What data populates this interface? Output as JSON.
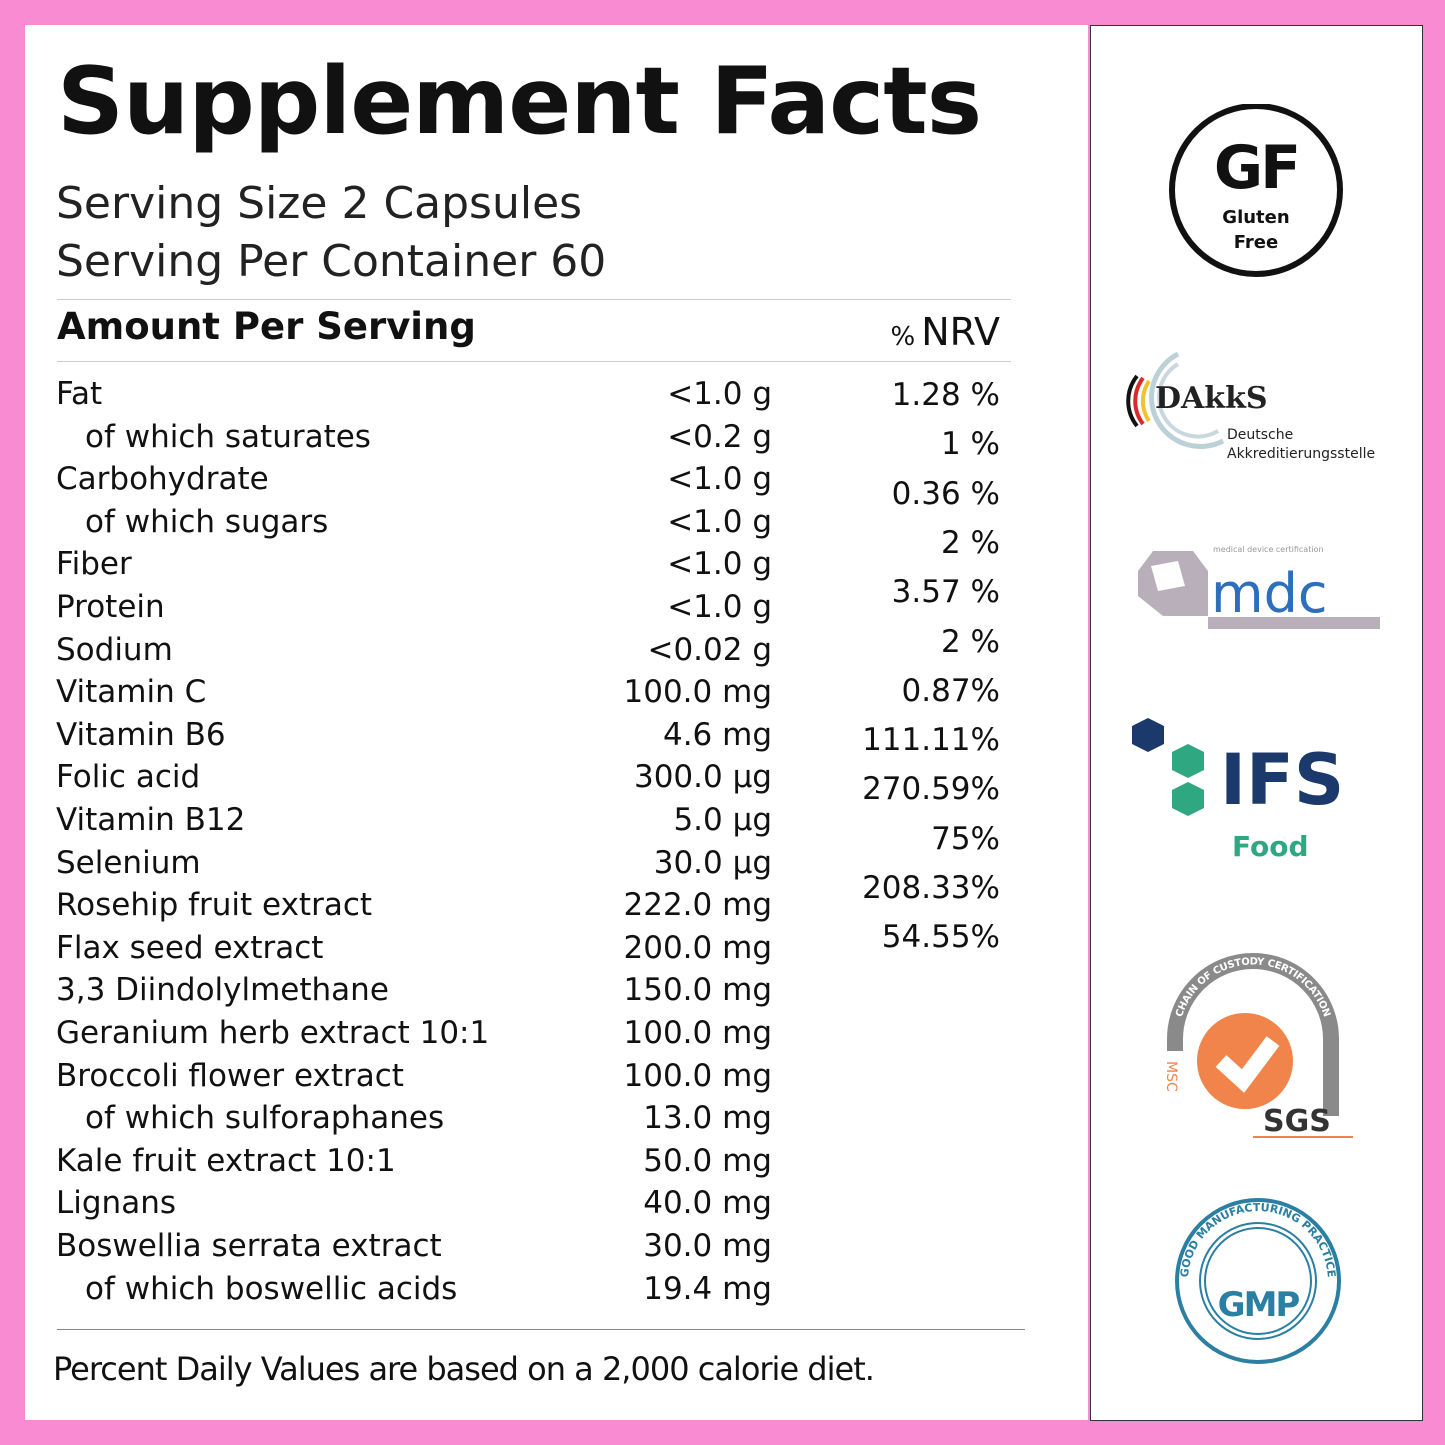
{
  "title": "Supplement Facts",
  "serving_size": "Serving Size 2 Capsules",
  "servings_per_container": "Serving Per Container 60",
  "amount_header": "Amount Per Serving",
  "nrv_header": {
    "symbol": "%",
    "label": "NRV"
  },
  "nutrients": [
    {
      "name": "Fat",
      "amount": "<1.0 g",
      "indent": false
    },
    {
      "name": "of which saturates",
      "amount": "<0.2 g",
      "indent": true
    },
    {
      "name": "Carbohydrate",
      "amount": "<1.0 g",
      "indent": false
    },
    {
      "name": "of which sugars",
      "amount": "<1.0 g",
      "indent": true
    },
    {
      "name": "Fiber",
      "amount": "<1.0 g",
      "indent": false
    },
    {
      "name": "Protein",
      "amount": "<1.0 g",
      "indent": false
    },
    {
      "name": "Sodium",
      "amount": "<0.02 g",
      "indent": false
    },
    {
      "name": "Vitamin C",
      "amount": "100.0 mg",
      "indent": false
    },
    {
      "name": "Vitamin B6",
      "amount": "4.6 mg",
      "indent": false
    },
    {
      "name": "Folic acid",
      "amount": "300.0 µg",
      "indent": false
    },
    {
      "name": "Vitamin B12",
      "amount": "5.0 µg",
      "indent": false
    },
    {
      "name": "Selenium",
      "amount": "30.0 µg",
      "indent": false
    },
    {
      "name": "Rosehip fruit extract",
      "amount": "222.0 mg",
      "indent": false
    },
    {
      "name": "Flax seed extract",
      "amount": "200.0 mg",
      "indent": false
    },
    {
      "name": "3,3 Diindolylmethane",
      "amount": "150.0 mg",
      "indent": false
    },
    {
      "name": "Geranium herb extract 10:1",
      "amount": "100.0 mg",
      "indent": false
    },
    {
      "name": "Broccoli flower extract",
      "amount": "100.0 mg",
      "indent": false
    },
    {
      "name": "of which sulforaphanes",
      "amount": "13.0 mg",
      "indent": true
    },
    {
      "name": "Kale fruit extract 10:1",
      "amount": "50.0 mg",
      "indent": false
    },
    {
      "name": "Lignans",
      "amount": "40.0 mg",
      "indent": false
    },
    {
      "name": "Boswellia serrata extract",
      "amount": "30.0 mg",
      "indent": false
    },
    {
      "name": "of which boswellic acids",
      "amount": "19.4 mg",
      "indent": true
    }
  ],
  "nrv_values": [
    "1.28 %",
    "1 %",
    "0.36 %",
    "2 %",
    "3.57 %",
    "2 %",
    "0.87%",
    "111.11%",
    "270.59%",
    "75%",
    "208.33%",
    "54.55%"
  ],
  "footnote": "Percent Daily Values are based on a 2,000 calorie diet.",
  "certifications": [
    {
      "name": "GF",
      "text": "Gluten Free",
      "top": "GF",
      "bottom1": "Gluten",
      "bottom2": "Free"
    },
    {
      "name": "DAkkS",
      "line1": "Deutsche",
      "line2": "Akkreditierungsstelle"
    },
    {
      "name": "mdc",
      "tagline": "medical device certification"
    },
    {
      "name": "IFS",
      "sub": "Food"
    },
    {
      "name": "SGS",
      "arc": "CHAIN OF CUSTODY CERTIFICATION",
      "side": "MSC"
    },
    {
      "name": "GMP",
      "ring": "GOOD MANUFACTURING PRACTICE"
    }
  ],
  "colors": {
    "border": "#f98bd2",
    "ifs_blue": "#1b3a6b",
    "ifs_green": "#2fa882",
    "sgs_orange": "#f0844a",
    "gmp_blue": "#2a7fa3",
    "mdc_blue": "#2d6ebd",
    "mdc_grey": "#b9afbb"
  }
}
